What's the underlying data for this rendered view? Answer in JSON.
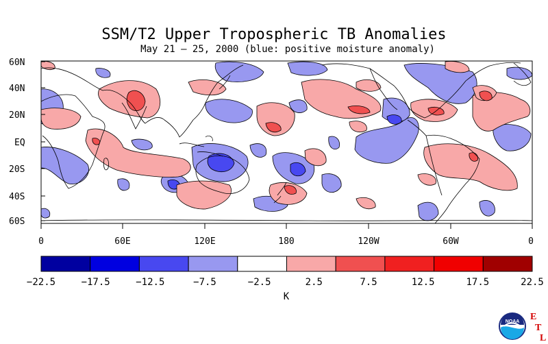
{
  "title": "SSM/T2 Upper Tropospheric TB Anomalies",
  "subtitle": "May 21 – 25, 2000 (blue: positive moisture anomaly)",
  "map": {
    "lat_labels": [
      "60N",
      "40N",
      "20N",
      "EQ",
      "20S",
      "40S",
      "60S"
    ],
    "lon_labels": [
      "0",
      "60E",
      "120E",
      "180",
      "120W",
      "60W",
      "0"
    ]
  },
  "colorbar": {
    "unit": "K",
    "levels": [
      "-22.5",
      "-17.5",
      "-12.5",
      "-7.5",
      "-2.5",
      "2.5",
      "7.5",
      "12.5",
      "17.5",
      "22.5"
    ],
    "colors": [
      "#0000a0",
      "#0000e0",
      "#4848f0",
      "#9898f0",
      "#ffffff",
      "#f8a8a8",
      "#f05050",
      "#f02020",
      "#f00000",
      "#a00000"
    ]
  },
  "logo": {
    "badge": "NOAA",
    "letters": [
      "E",
      "T",
      "L"
    ]
  }
}
